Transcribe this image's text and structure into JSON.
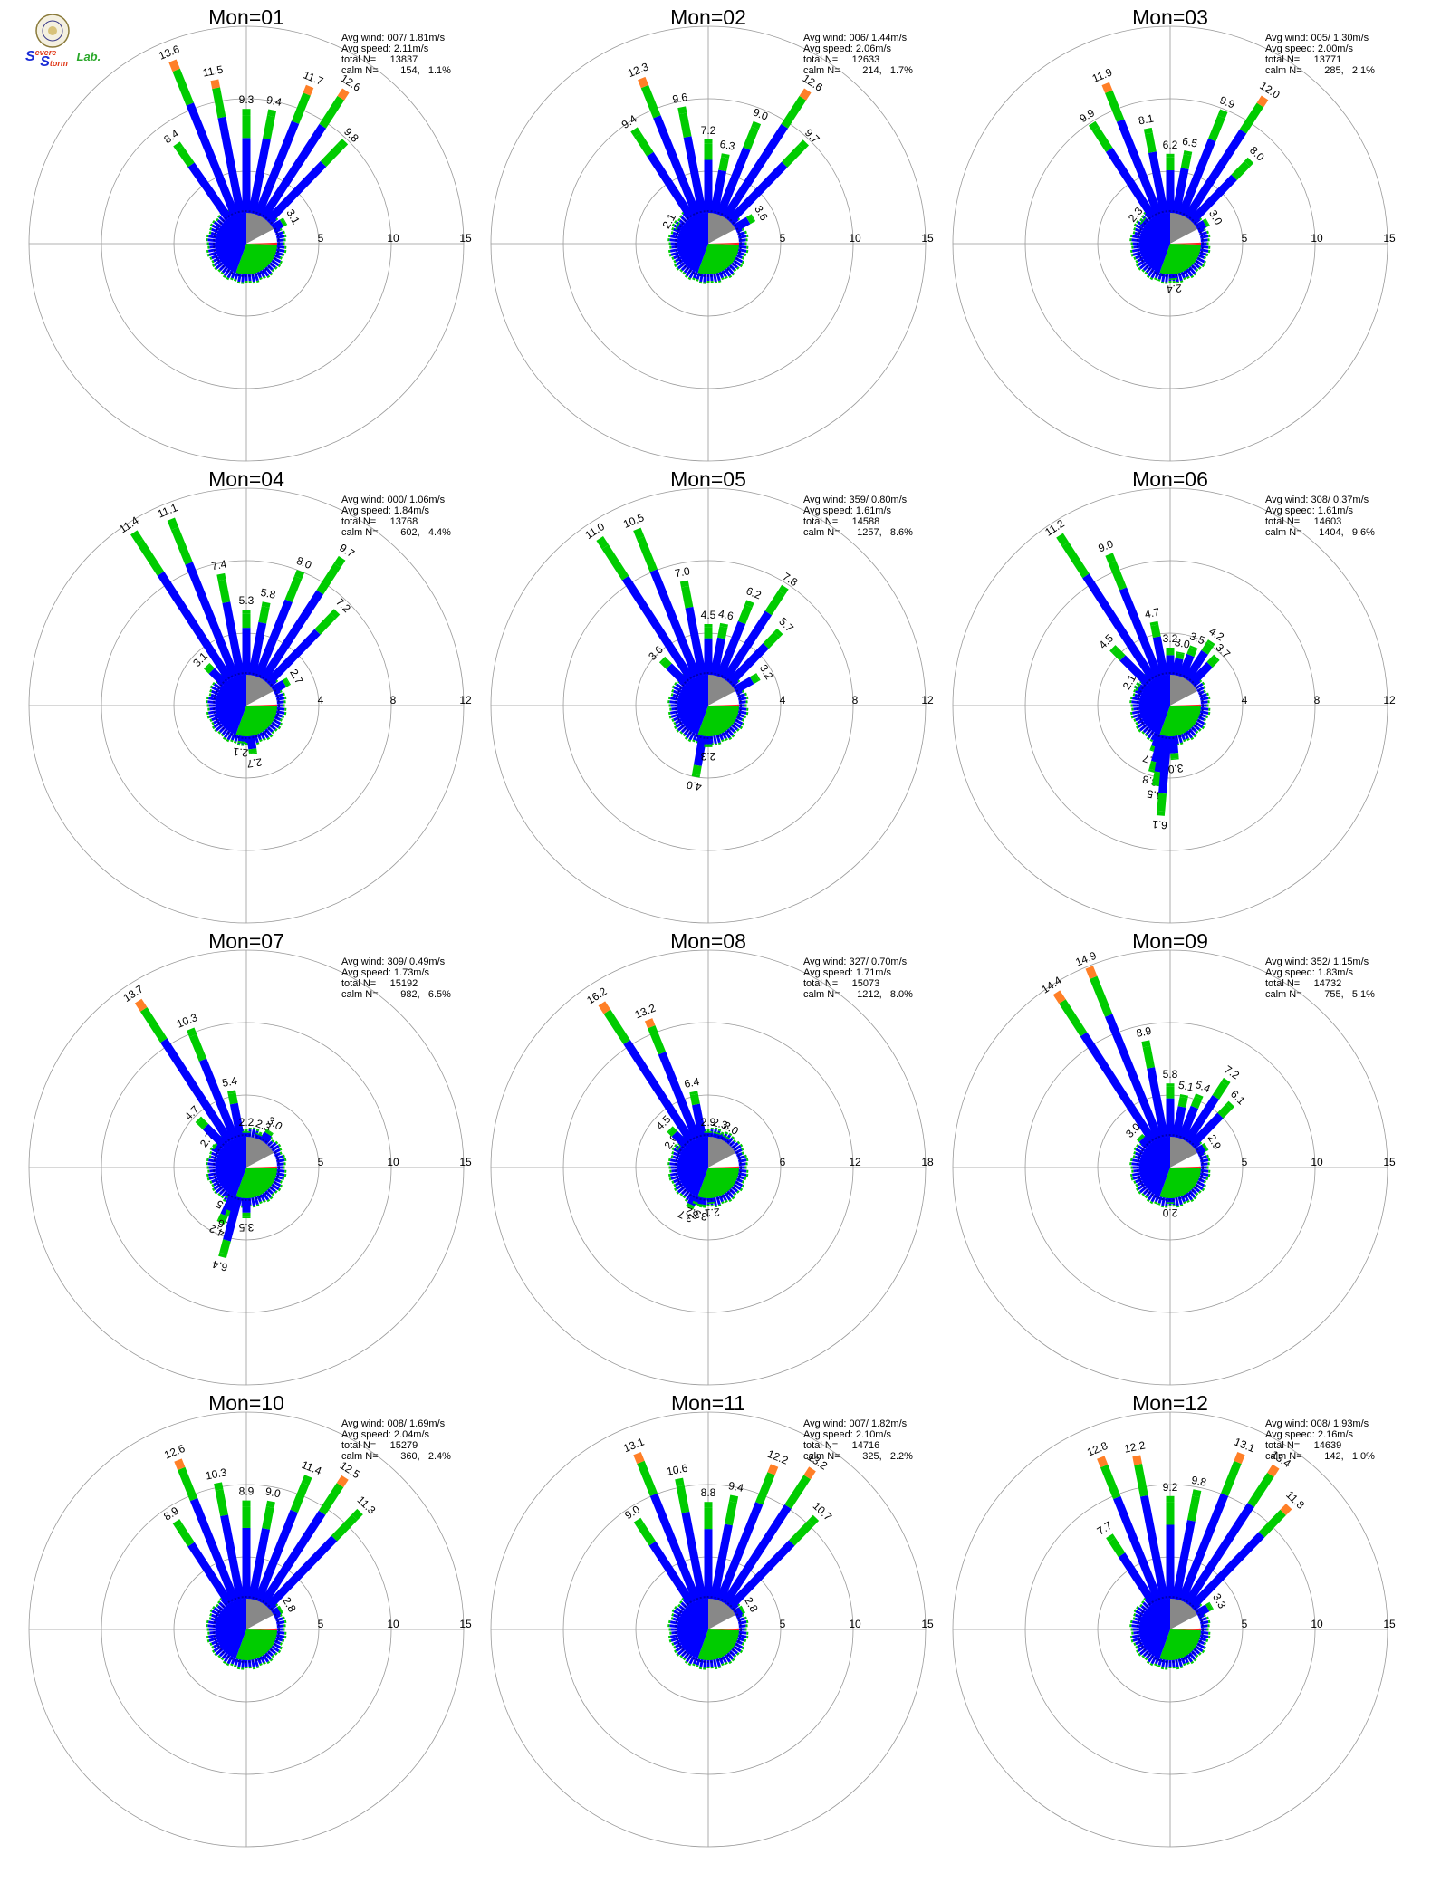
{
  "logo": {
    "text_s1": "S",
    "text_evere": "evere",
    "text_s2": "S",
    "text_torm": "torm",
    "text_lab": "Lab.",
    "colors": {
      "s": "#1a2bd6",
      "evere": "#e03a1a",
      "lab": "#2aa82a",
      "seal": "#d8c27a"
    }
  },
  "colors": {
    "low": "#0000ff",
    "mid": "#00cc00",
    "high": "#ff7f27",
    "top": "#ff2020",
    "calm": "#888888",
    "dotted": "#0000aa",
    "grid": "#999999"
  },
  "stat_labels": {
    "avg_wind": "Avg wind:",
    "avg_speed": "Avg speed:",
    "total": "total N=",
    "calm": "calm N="
  },
  "chart_data": [
    {
      "type": "polar-bar",
      "title": "Mon=01",
      "avg_wind": "007/ 1.81m/s",
      "avg_speed": "2.11m/s",
      "total_n": "13837",
      "calm_n": "154,",
      "calm_pct": "1.1%",
      "rlim": [
        0,
        15
      ],
      "rticks": [
        5,
        10,
        15
      ],
      "labeled_bars": [
        {
          "dir": -35,
          "value": 8.4
        },
        {
          "dir": -22,
          "value": 13.6
        },
        {
          "dir": -11,
          "value": 11.5
        },
        {
          "dir": 0,
          "value": 9.3
        },
        {
          "dir": 11,
          "value": 9.4
        },
        {
          "dir": 22,
          "value": 11.7
        },
        {
          "dir": 33,
          "value": 12.6
        },
        {
          "dir": 44,
          "value": 9.8
        },
        {
          "dir": 60,
          "value": 3.1
        }
      ]
    },
    {
      "type": "polar-bar",
      "title": "Mon=02",
      "avg_wind": "006/ 1.44m/s",
      "avg_speed": "2.06m/s",
      "total_n": "12633",
      "calm_n": "214,",
      "calm_pct": "1.7%",
      "rlim": [
        0,
        15
      ],
      "rticks": [
        5,
        10,
        15
      ],
      "labeled_bars": [
        {
          "dir": -60,
          "value": 2.1
        },
        {
          "dir": -33,
          "value": 9.4
        },
        {
          "dir": -22,
          "value": 12.3
        },
        {
          "dir": -11,
          "value": 9.6
        },
        {
          "dir": 0,
          "value": 7.2
        },
        {
          "dir": 11,
          "value": 6.3
        },
        {
          "dir": 22,
          "value": 9.0
        },
        {
          "dir": 33,
          "value": 12.6
        },
        {
          "dir": 44,
          "value": 9.7
        },
        {
          "dir": 60,
          "value": 3.6
        }
      ]
    },
    {
      "type": "polar-bar",
      "title": "Mon=03",
      "avg_wind": "005/ 1.30m/s",
      "avg_speed": "2.00m/s",
      "total_n": "13771",
      "calm_n": "285,",
      "calm_pct": "2.1%",
      "rlim": [
        0,
        15
      ],
      "rticks": [
        5,
        10,
        15
      ],
      "labeled_bars": [
        {
          "dir": -50,
          "value": 2.3
        },
        {
          "dir": -33,
          "value": 9.9
        },
        {
          "dir": -22,
          "value": 11.9
        },
        {
          "dir": -11,
          "value": 8.1
        },
        {
          "dir": 0,
          "value": 6.2
        },
        {
          "dir": 11,
          "value": 6.5
        },
        {
          "dir": 22,
          "value": 9.9
        },
        {
          "dir": 33,
          "value": 12.0
        },
        {
          "dir": 44,
          "value": 8.0
        },
        {
          "dir": 60,
          "value": 3.0
        },
        {
          "dir": 175,
          "value": 2.4
        }
      ]
    },
    {
      "type": "polar-bar",
      "title": "Mon=04",
      "avg_wind": "000/ 1.06m/s",
      "avg_speed": "1.84m/s",
      "total_n": "13768",
      "calm_n": "602,",
      "calm_pct": "4.4%",
      "rlim": [
        0,
        12
      ],
      "rticks": [
        4,
        8,
        12
      ],
      "labeled_bars": [
        {
          "dir": -45,
          "value": 3.1
        },
        {
          "dir": -33,
          "value": 11.4
        },
        {
          "dir": -22,
          "value": 11.1
        },
        {
          "dir": -11,
          "value": 7.4
        },
        {
          "dir": 0,
          "value": 5.3
        },
        {
          "dir": 11,
          "value": 5.8
        },
        {
          "dir": 22,
          "value": 8.0
        },
        {
          "dir": 33,
          "value": 9.7
        },
        {
          "dir": 44,
          "value": 7.2
        },
        {
          "dir": 60,
          "value": 2.7
        },
        {
          "dir": 187,
          "value": 2.1
        },
        {
          "dir": 172,
          "value": 2.7
        }
      ]
    },
    {
      "type": "polar-bar",
      "title": "Mon=05",
      "avg_wind": "359/ 0.80m/s",
      "avg_speed": "1.61m/s",
      "total_n": "14588",
      "calm_n": "1257,",
      "calm_pct": "8.6%",
      "rlim": [
        0,
        12
      ],
      "rticks": [
        4,
        8,
        12
      ],
      "labeled_bars": [
        {
          "dir": -45,
          "value": 3.6
        },
        {
          "dir": -33,
          "value": 11.0
        },
        {
          "dir": -22,
          "value": 10.5
        },
        {
          "dir": -11,
          "value": 7.0
        },
        {
          "dir": 0,
          "value": 4.5
        },
        {
          "dir": 11,
          "value": 4.6
        },
        {
          "dir": 22,
          "value": 6.2
        },
        {
          "dir": 33,
          "value": 7.8
        },
        {
          "dir": 44,
          "value": 5.7
        },
        {
          "dir": 60,
          "value": 3.2
        },
        {
          "dir": 190,
          "value": 4.0
        },
        {
          "dir": 180,
          "value": 2.3
        }
      ]
    },
    {
      "type": "polar-bar",
      "title": "Mon=06",
      "avg_wind": "308/ 0.37m/s",
      "avg_speed": "1.61m/s",
      "total_n": "14603",
      "calm_n": "1404,",
      "calm_pct": "9.6%",
      "rlim": [
        0,
        12
      ],
      "rticks": [
        4,
        8,
        12
      ],
      "labeled_bars": [
        {
          "dir": -60,
          "value": 2.1
        },
        {
          "dir": -45,
          "value": 4.5
        },
        {
          "dir": -33,
          "value": 11.2
        },
        {
          "dir": -22,
          "value": 9.0
        },
        {
          "dir": -11,
          "value": 4.7
        },
        {
          "dir": 0,
          "value": 3.2
        },
        {
          "dir": 11,
          "value": 3.0
        },
        {
          "dir": 22,
          "value": 3.5
        },
        {
          "dir": 33,
          "value": 4.2
        },
        {
          "dir": 44,
          "value": 3.7
        },
        {
          "dir": 200,
          "value": 2.7
        },
        {
          "dir": 195,
          "value": 3.8
        },
        {
          "dir": 190,
          "value": 4.5
        },
        {
          "dir": 185,
          "value": 6.1
        },
        {
          "dir": 175,
          "value": 3.0
        }
      ]
    },
    {
      "type": "polar-bar",
      "title": "Mon=07",
      "avg_wind": "309/ 0.49m/s",
      "avg_speed": "1.73m/s",
      "total_n": "15192",
      "calm_n": "982,",
      "calm_pct": "6.5%",
      "rlim": [
        0,
        15
      ],
      "rticks": [
        5,
        10,
        15
      ],
      "labeled_bars": [
        {
          "dir": -55,
          "value": 2.7
        },
        {
          "dir": -45,
          "value": 4.7
        },
        {
          "dir": -33,
          "value": 13.7
        },
        {
          "dir": -22,
          "value": 10.3
        },
        {
          "dir": -11,
          "value": 5.4
        },
        {
          "dir": 0,
          "value": 2.2
        },
        {
          "dir": 22,
          "value": 2.3
        },
        {
          "dir": 33,
          "value": 3.0
        },
        {
          "dir": 210,
          "value": 2.5
        },
        {
          "dir": 205,
          "value": 4.2
        },
        {
          "dir": 200,
          "value": 3.6
        },
        {
          "dir": 195,
          "value": 6.4
        },
        {
          "dir": 180,
          "value": 3.5
        }
      ]
    },
    {
      "type": "polar-bar",
      "title": "Mon=08",
      "avg_wind": "327/ 0.70m/s",
      "avg_speed": "1.71m/s",
      "total_n": "15073",
      "calm_n": "1212,",
      "calm_pct": "8.0%",
      "rlim": [
        0,
        18
      ],
      "rticks": [
        6,
        12,
        18
      ],
      "labeled_bars": [
        {
          "dir": -55,
          "value": 2.0
        },
        {
          "dir": -45,
          "value": 4.5
        },
        {
          "dir": -33,
          "value": 16.2
        },
        {
          "dir": -22,
          "value": 13.2
        },
        {
          "dir": -11,
          "value": 6.4
        },
        {
          "dir": 0,
          "value": 2.9
        },
        {
          "dir": 15,
          "value": 2.3
        },
        {
          "dir": 30,
          "value": 3.0
        },
        {
          "dir": 205,
          "value": 3.7
        },
        {
          "dir": 198,
          "value": 3.2
        },
        {
          "dir": 190,
          "value": 3.3
        },
        {
          "dir": 175,
          "value": 2.1
        }
      ]
    },
    {
      "type": "polar-bar",
      "title": "Mon=09",
      "avg_wind": "352/ 1.15m/s",
      "avg_speed": "1.83m/s",
      "total_n": "14732",
      "calm_n": "755,",
      "calm_pct": "5.1%",
      "rlim": [
        0,
        15
      ],
      "rticks": [
        5,
        10,
        15
      ],
      "labeled_bars": [
        {
          "dir": -45,
          "value": 3.0
        },
        {
          "dir": -33,
          "value": 14.4
        },
        {
          "dir": -22,
          "value": 14.9
        },
        {
          "dir": -11,
          "value": 8.9
        },
        {
          "dir": 0,
          "value": 5.8
        },
        {
          "dir": 11,
          "value": 5.1
        },
        {
          "dir": 22,
          "value": 5.4
        },
        {
          "dir": 33,
          "value": 7.2
        },
        {
          "dir": 44,
          "value": 6.1
        },
        {
          "dir": 60,
          "value": 2.9
        },
        {
          "dir": 180,
          "value": 2.0
        }
      ]
    },
    {
      "type": "polar-bar",
      "title": "Mon=10",
      "avg_wind": "008/ 1.69m/s",
      "avg_speed": "2.04m/s",
      "total_n": "15279",
      "calm_n": "360,",
      "calm_pct": "2.4%",
      "rlim": [
        0,
        15
      ],
      "rticks": [
        5,
        10,
        15
      ],
      "labeled_bars": [
        {
          "dir": -33,
          "value": 8.9
        },
        {
          "dir": -22,
          "value": 12.6
        },
        {
          "dir": -11,
          "value": 10.3
        },
        {
          "dir": 0,
          "value": 8.9
        },
        {
          "dir": 11,
          "value": 9.0
        },
        {
          "dir": 22,
          "value": 11.4
        },
        {
          "dir": 33,
          "value": 12.5
        },
        {
          "dir": 44,
          "value": 11.3
        },
        {
          "dir": 60,
          "value": 2.8
        }
      ]
    },
    {
      "type": "polar-bar",
      "title": "Mon=11",
      "avg_wind": "007/ 1.82m/s",
      "avg_speed": "2.10m/s",
      "total_n": "14716",
      "calm_n": "325,",
      "calm_pct": "2.2%",
      "rlim": [
        0,
        15
      ],
      "rticks": [
        5,
        10,
        15
      ],
      "labeled_bars": [
        {
          "dir": -33,
          "value": 9.0
        },
        {
          "dir": -22,
          "value": 13.1
        },
        {
          "dir": -11,
          "value": 10.6
        },
        {
          "dir": 0,
          "value": 8.8
        },
        {
          "dir": 11,
          "value": 9.4
        },
        {
          "dir": 22,
          "value": 12.2
        },
        {
          "dir": 33,
          "value": 13.2
        },
        {
          "dir": 44,
          "value": 10.7
        },
        {
          "dir": 60,
          "value": 2.8
        }
      ]
    },
    {
      "type": "polar-bar",
      "title": "Mon=12",
      "avg_wind": "008/ 1.93m/s",
      "avg_speed": "2.16m/s",
      "total_n": "14639",
      "calm_n": "142,",
      "calm_pct": "1.0%",
      "rlim": [
        0,
        15
      ],
      "rticks": [
        5,
        10,
        15
      ],
      "labeled_bars": [
        {
          "dir": -33,
          "value": 7.7
        },
        {
          "dir": -22,
          "value": 12.8
        },
        {
          "dir": -11,
          "value": 12.2
        },
        {
          "dir": 0,
          "value": 9.2
        },
        {
          "dir": 11,
          "value": 9.8
        },
        {
          "dir": 22,
          "value": 13.1
        },
        {
          "dir": 33,
          "value": 13.4
        },
        {
          "dir": 44,
          "value": 11.8
        },
        {
          "dir": 60,
          "value": 3.3
        }
      ]
    }
  ]
}
